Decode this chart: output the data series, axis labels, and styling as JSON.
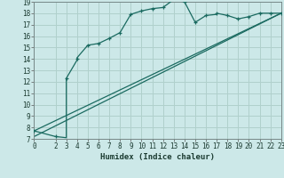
{
  "title": "",
  "xlabel": "Humidex (Indice chaleur)",
  "ylabel": "",
  "bg_color": "#cce8e8",
  "grid_color": "#b0d0cc",
  "line_color": "#1a6a60",
  "xlim": [
    0,
    23
  ],
  "ylim": [
    7,
    19
  ],
  "xticks": [
    0,
    2,
    3,
    4,
    5,
    6,
    7,
    8,
    9,
    10,
    11,
    12,
    13,
    14,
    15,
    16,
    17,
    18,
    19,
    20,
    21,
    22,
    23
  ],
  "yticks": [
    7,
    8,
    9,
    10,
    11,
    12,
    13,
    14,
    15,
    16,
    17,
    18,
    19
  ],
  "main_x": [
    0,
    2,
    3,
    3,
    4,
    4,
    5,
    6,
    7,
    8,
    9,
    10,
    11,
    12,
    13,
    13,
    14,
    15,
    16,
    17,
    17,
    18,
    19,
    20,
    21,
    22,
    23
  ],
  "main_y": [
    7.7,
    7.2,
    7.1,
    12.3,
    13.9,
    14.1,
    15.2,
    15.35,
    15.8,
    16.3,
    17.9,
    18.2,
    18.4,
    18.5,
    19.2,
    19.2,
    19.0,
    17.2,
    17.8,
    17.9,
    18.0,
    17.8,
    17.5,
    17.7,
    18.0,
    18.0,
    18.0
  ],
  "ref_line1_x": [
    0,
    23
  ],
  "ref_line1_y": [
    7.7,
    18.0
  ],
  "ref_line2_x": [
    0,
    23
  ],
  "ref_line2_y": [
    7.2,
    18.0
  ],
  "marker_x": [
    0,
    2,
    3,
    4,
    5,
    6,
    7,
    8,
    9,
    10,
    11,
    12,
    13,
    14,
    15,
    16,
    17,
    18,
    19,
    20,
    21,
    22,
    23
  ],
  "marker_y": [
    7.7,
    7.2,
    12.3,
    14.0,
    15.2,
    15.35,
    15.8,
    16.3,
    17.9,
    18.2,
    18.4,
    18.5,
    19.2,
    19.0,
    17.2,
    17.8,
    18.0,
    17.8,
    17.5,
    17.7,
    18.0,
    18.0,
    18.0
  ]
}
